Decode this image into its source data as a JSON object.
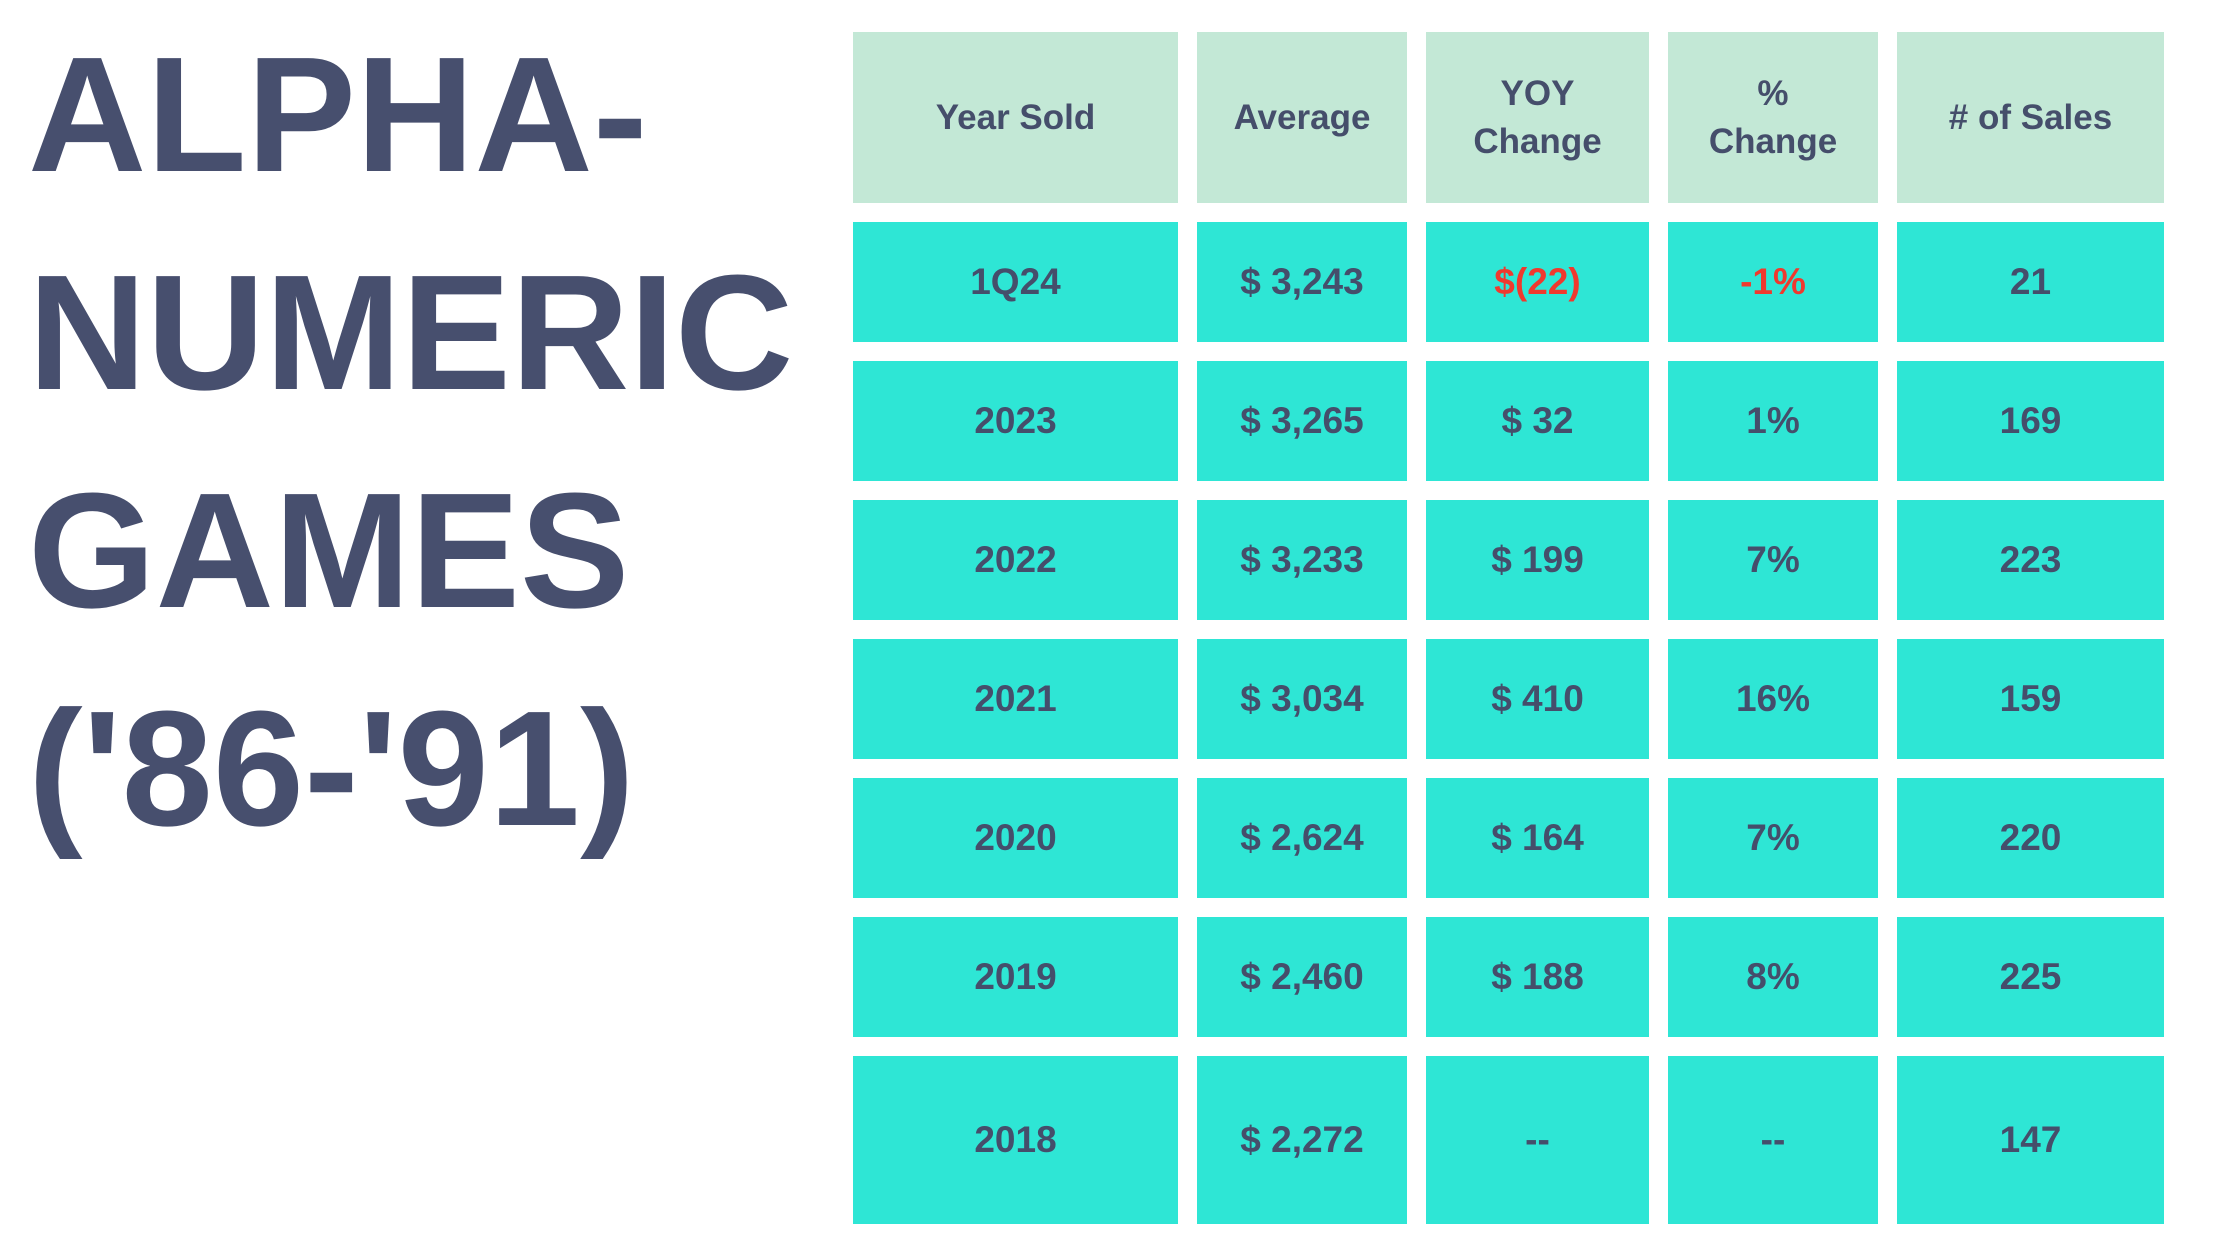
{
  "title": {
    "lines": [
      "ALPHA-",
      "NUMERIC",
      "GAMES",
      "('86-'91)"
    ],
    "full_text": "ALPHA-NUMERIC GAMES ('86-'91)"
  },
  "table": {
    "columns": [
      {
        "id": "year",
        "label": "Year Sold"
      },
      {
        "id": "average",
        "label": "Average"
      },
      {
        "id": "yoy",
        "label": "YOY\nChange"
      },
      {
        "id": "pct",
        "label": "%\nChange"
      },
      {
        "id": "sales",
        "label": "# of Sales"
      }
    ],
    "rows": [
      {
        "year": "1Q24",
        "average": "$ 3,243",
        "yoy": "$(22)",
        "pct": "-1%",
        "sales": "21",
        "negative": true
      },
      {
        "year": "2023",
        "average": "$ 3,265",
        "yoy": "$ 32",
        "pct": "1%",
        "sales": "169",
        "negative": false
      },
      {
        "year": "2022",
        "average": "$ 3,233",
        "yoy": "$ 199",
        "pct": "7%",
        "sales": "223",
        "negative": false
      },
      {
        "year": "2021",
        "average": "$ 3,034",
        "yoy": "$ 410",
        "pct": "16%",
        "sales": "159",
        "negative": false
      },
      {
        "year": "2020",
        "average": "$ 2,624",
        "yoy": "$ 164",
        "pct": "7%",
        "sales": "220",
        "negative": false
      },
      {
        "year": "2019",
        "average": "$ 2,460",
        "yoy": "$ 188",
        "pct": "8%",
        "sales": "225",
        "negative": false
      },
      {
        "year": "2018",
        "average": "$ 2,272",
        "yoy": "--",
        "pct": "--",
        "sales": "147",
        "negative": false
      }
    ]
  },
  "colors": {
    "header_background": "#c3e8d6",
    "cell_background": "#2ee6d5",
    "text": "#454e6b",
    "title_text": "#474f6e",
    "negative_text": "#f0392e",
    "page_background": "#ffffff"
  },
  "chart_data": {
    "type": "table",
    "title": "ALPHA-NUMERIC GAMES ('86-'91)",
    "columns": [
      "Year Sold",
      "Average",
      "YOY Change",
      "% Change",
      "# of Sales"
    ],
    "rows": [
      [
        "1Q24",
        "$ 3,243",
        "$(22)",
        "-1%",
        "21"
      ],
      [
        "2023",
        "$ 3,265",
        "$ 32",
        "1%",
        "169"
      ],
      [
        "2022",
        "$ 3,233",
        "$ 199",
        "7%",
        "223"
      ],
      [
        "2021",
        "$ 3,034",
        "$ 410",
        "16%",
        "159"
      ],
      [
        "2020",
        "$ 2,624",
        "$ 164",
        "7%",
        "220"
      ],
      [
        "2019",
        "$ 2,460",
        "$ 188",
        "8%",
        "225"
      ],
      [
        "2018",
        "$ 2,272",
        "--",
        "--",
        "147"
      ]
    ],
    "notes": "Negative values $(22) and -1% shown in red in row 1Q24"
  }
}
